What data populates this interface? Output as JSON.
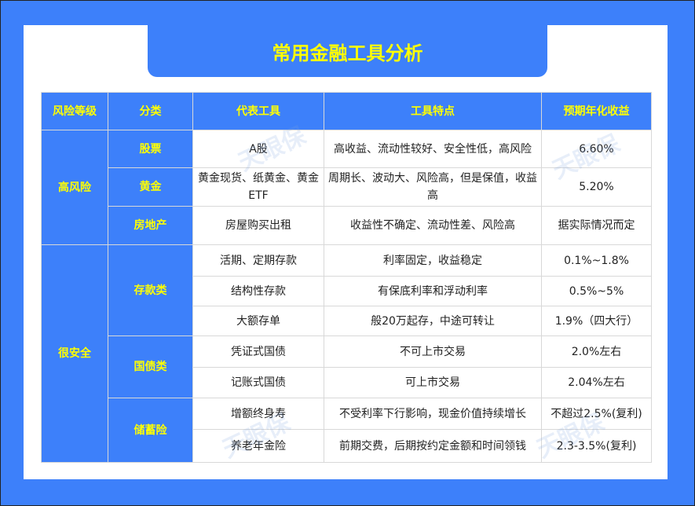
{
  "title": "常用金融工具分析",
  "watermark": "天眼保",
  "colors": {
    "accent": "#3d80fa",
    "header_text": "#ffff00"
  },
  "headers": [
    "风险等级",
    "分类",
    "代表工具",
    "工具特点",
    "预期年化收益"
  ],
  "groups": [
    {
      "level": "高风险",
      "categories": [
        {
          "name": "股票",
          "rows": [
            {
              "tool": "A股",
              "feature": "高收益、流动性较好、安全性低，高风险",
              "yield": "6.60%"
            }
          ]
        },
        {
          "name": "黄金",
          "rows": [
            {
              "tool": "黄金现货、纸黄金、黄金ETF",
              "feature": "周期长、波动大、风险高，但是保值，收益高",
              "yield": "5.20%"
            }
          ]
        },
        {
          "name": "房地产",
          "rows": [
            {
              "tool": "房屋购买出租",
              "feature": "收益性不确定、流动性差、风险高",
              "yield": "据实际情况而定"
            }
          ]
        }
      ]
    },
    {
      "level": "很安全",
      "categories": [
        {
          "name": "存款类",
          "rows": [
            {
              "tool": "活期、定期存款",
              "feature": "利率固定，收益稳定",
              "yield": "0.1%~1.8%"
            },
            {
              "tool": "结构性存款",
              "feature": "有保底利率和浮动利率",
              "yield": "0.5%~5%"
            },
            {
              "tool": "大额存单",
              "feature": "般20万起存，中途可转让",
              "yield": "1.9%（四大行）"
            }
          ]
        },
        {
          "name": "国债类",
          "rows": [
            {
              "tool": "凭证式国债",
              "feature": "不可上市交易",
              "yield": "2.0%左右"
            },
            {
              "tool": "记账式国债",
              "feature": "可上市交易",
              "yield": "2.04%左右"
            }
          ]
        },
        {
          "name": "储蓄险",
          "rows": [
            {
              "tool": "增额终身寿",
              "feature": "不受利率下行影响，现金价值持续增长",
              "yield": "不超过2.5%(复利)"
            },
            {
              "tool": "养老年金险",
              "feature": "前期交费，后期按约定金额和时间领钱",
              "yield": "2.3-3.5%(复利)"
            }
          ]
        }
      ]
    }
  ]
}
